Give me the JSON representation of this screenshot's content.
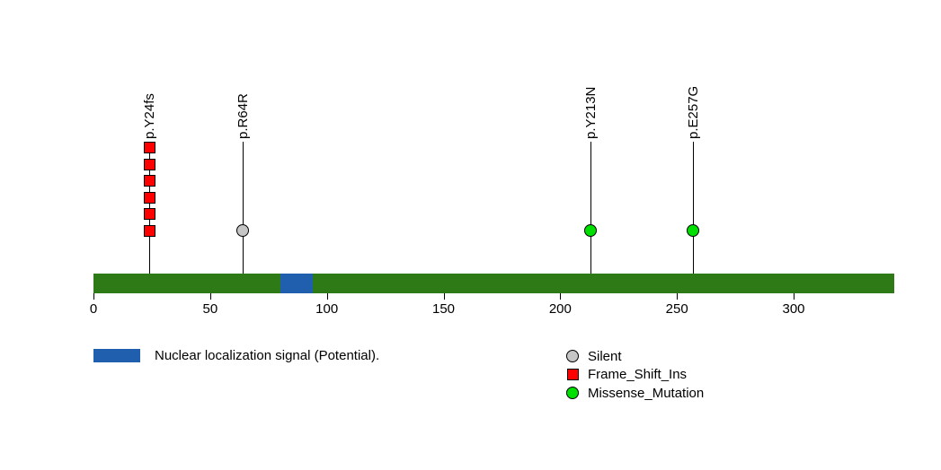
{
  "chart_data": {
    "type": "lollipop",
    "title": "",
    "xlabel": "",
    "ylabel": "",
    "x_ticks": [
      0,
      50,
      100,
      150,
      200,
      250,
      300
    ],
    "xlim": [
      0,
      343
    ],
    "grid": false,
    "background_color": "#ffffff",
    "protein": {
      "length": 343,
      "backbone_color": "#2e7a17",
      "domains": [
        {
          "name": "Nuclear localization signal (Potential).",
          "start": 80,
          "end": 94,
          "color": "#1f5fae"
        }
      ]
    },
    "mutations": [
      {
        "label": "p.Y24fs",
        "position": 24,
        "type": "Frame_Shift_Ins",
        "count": 6,
        "marker": "square",
        "color": "#ff0000"
      },
      {
        "label": "p.R64R",
        "position": 64,
        "type": "Silent",
        "count": 1,
        "marker": "circle",
        "color": "#c6c6c6"
      },
      {
        "label": "p.Y213N",
        "position": 213,
        "type": "Missense_Mutation",
        "count": 1,
        "marker": "circle",
        "color": "#00e000"
      },
      {
        "label": "p.E257G",
        "position": 257,
        "type": "Missense_Mutation",
        "count": 1,
        "marker": "circle",
        "color": "#00e000"
      }
    ],
    "legend": {
      "domain": {
        "label": "Nuclear localization signal (Potential).",
        "color": "#1f5fae"
      },
      "mutation_types": [
        {
          "label": "Silent",
          "marker": "circle",
          "color": "#c6c6c6"
        },
        {
          "label": "Frame_Shift_Ins",
          "marker": "square",
          "color": "#ff0000"
        },
        {
          "label": "Missense_Mutation",
          "marker": "circle",
          "color": "#00e000"
        }
      ],
      "position": "bottom"
    }
  }
}
